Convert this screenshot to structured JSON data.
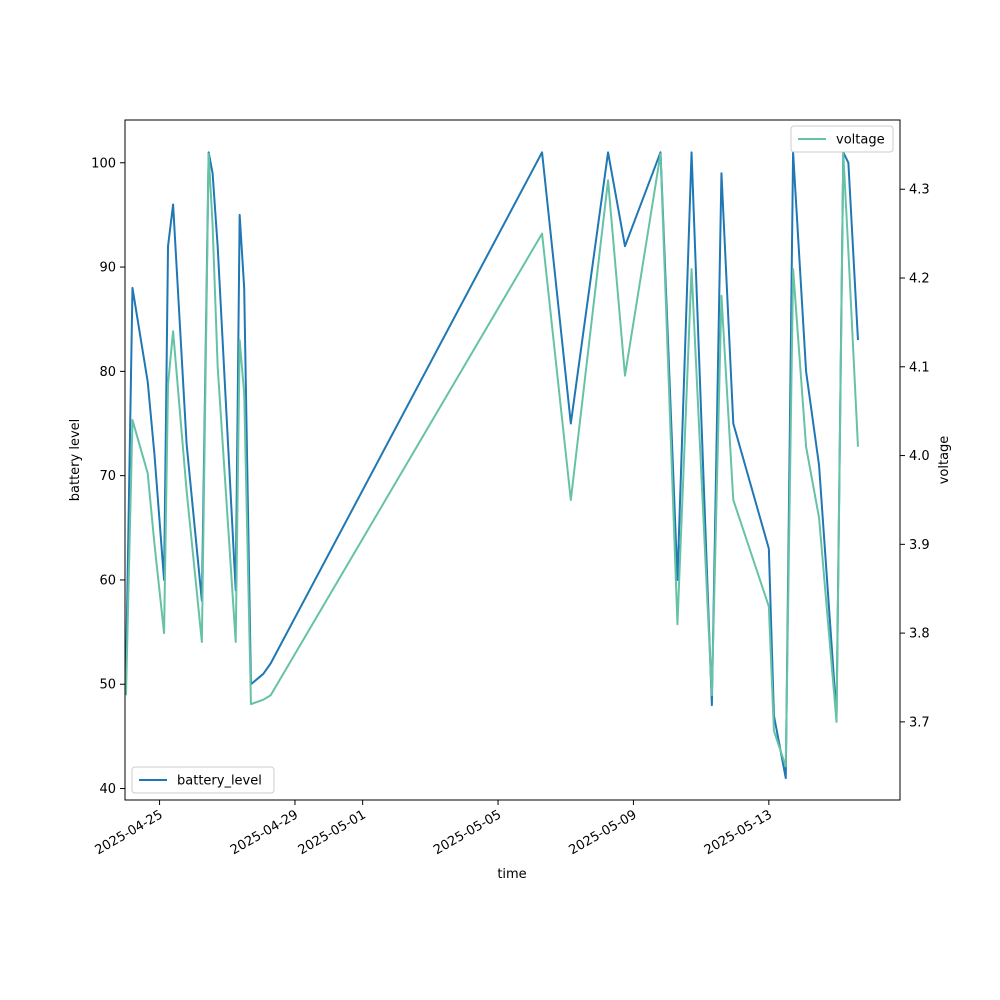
{
  "chart_data": {
    "type": "line",
    "xlabel": "time",
    "x_ticks": [
      "2025-04-25",
      "2025-04-29",
      "2025-05-01",
      "2025-05-05",
      "2025-05-09",
      "2025-05-13"
    ],
    "y_left": {
      "label": "battery level",
      "lim": [
        38.9,
        104.1
      ],
      "ticks": [
        40,
        50,
        60,
        70,
        80,
        90,
        100
      ]
    },
    "y_right": {
      "label": "voltage",
      "lim": [
        3.612,
        4.378
      ],
      "ticks": [
        3.7,
        3.8,
        3.9,
        4.0,
        4.1,
        4.2,
        4.3
      ]
    },
    "x_lim": [
      "2025-04-23T23:30",
      "2025-05-16T21:00"
    ],
    "grid": false,
    "legend": [
      {
        "name": "battery_level",
        "placement": "lower-left"
      },
      {
        "name": "voltage",
        "placement": "upper-right"
      }
    ],
    "colors": {
      "battery_level": "#1f77b4",
      "voltage": "#66c2a5"
    },
    "series": [
      {
        "name": "battery_level",
        "axis": "left",
        "x": [
          "2025-04-24T00:12",
          "2025-04-24T04:48",
          "2025-04-24T15:36",
          "2025-04-24T20:24",
          "2025-04-25T03:12",
          "2025-04-25T06:00",
          "2025-04-25T09:36",
          "2025-04-25T19:12",
          "2025-04-26T06:00",
          "2025-04-26T10:48",
          "2025-04-26T13:36",
          "2025-04-26T17:12",
          "2025-04-27T06:00",
          "2025-04-27T08:48",
          "2025-04-27T12:00",
          "2025-04-27T16:48",
          "2025-04-28T01:36",
          "2025-04-28T06:48",
          "2025-05-06T07:12",
          "2025-05-07T03:36",
          "2025-05-08T06:00",
          "2025-05-08T18:00",
          "2025-05-09T19:12",
          "2025-05-10T07:12",
          "2025-05-10T17:12",
          "2025-05-11T07:36",
          "2025-05-11T14:24",
          "2025-05-11T22:48",
          "2025-05-13T00:00",
          "2025-05-13T03:36",
          "2025-05-13T12:00",
          "2025-05-13T17:12",
          "2025-05-14T02:24",
          "2025-05-14T11:36",
          "2025-05-15T00:00",
          "2025-05-15T04:48",
          "2025-05-15T08:24",
          "2025-05-15T15:12"
        ],
        "values": [
          51,
          88,
          79,
          72,
          60,
          92,
          96,
          73,
          58,
          101,
          99,
          92,
          59,
          95,
          88,
          50,
          51,
          52,
          101,
          75,
          101,
          92,
          101,
          60,
          101,
          48,
          99,
          75,
          63,
          47,
          41,
          101,
          80,
          71,
          47,
          101,
          100,
          83
        ]
      },
      {
        "name": "voltage",
        "axis": "right",
        "x": [
          "2025-04-24T00:12",
          "2025-04-24T04:48",
          "2025-04-24T15:36",
          "2025-04-24T20:24",
          "2025-04-25T03:12",
          "2025-04-25T06:00",
          "2025-04-25T09:36",
          "2025-04-25T19:12",
          "2025-04-26T06:00",
          "2025-04-26T10:48",
          "2025-04-26T13:36",
          "2025-04-26T17:12",
          "2025-04-27T06:00",
          "2025-04-27T08:48",
          "2025-04-27T12:00",
          "2025-04-27T16:48",
          "2025-04-28T01:36",
          "2025-04-28T06:48",
          "2025-05-06T07:12",
          "2025-05-07T03:36",
          "2025-05-08T06:00",
          "2025-05-08T18:00",
          "2025-05-09T19:12",
          "2025-05-10T07:12",
          "2025-05-10T17:12",
          "2025-05-11T07:36",
          "2025-05-11T14:24",
          "2025-05-11T22:48",
          "2025-05-13T00:00",
          "2025-05-13T03:36",
          "2025-05-13T12:00",
          "2025-05-13T17:12",
          "2025-05-14T02:24",
          "2025-05-14T11:36",
          "2025-05-15T00:00",
          "2025-05-15T04:48",
          "2025-05-15T08:24",
          "2025-05-15T15:12"
        ],
        "values": [
          3.73,
          4.04,
          3.98,
          3.9,
          3.8,
          4.08,
          4.14,
          3.96,
          3.79,
          4.34,
          4.26,
          4.1,
          3.79,
          4.13,
          4.07,
          3.72,
          3.725,
          3.73,
          4.25,
          3.95,
          4.31,
          4.09,
          4.34,
          3.81,
          4.21,
          3.73,
          4.18,
          3.95,
          3.83,
          3.69,
          3.65,
          4.21,
          4.01,
          3.93,
          3.7,
          4.34,
          4.23,
          4.01
        ]
      }
    ]
  }
}
